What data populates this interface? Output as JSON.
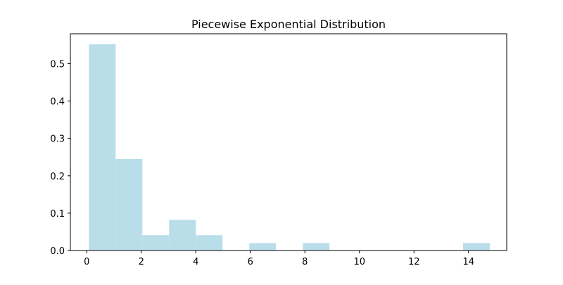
{
  "chart_data": {
    "type": "bar",
    "title": "Piecewise Exponential Distribution",
    "xlabel": "",
    "ylabel": "",
    "xlim": [
      -0.6,
      15.4
    ],
    "ylim": [
      0,
      0.58
    ],
    "xticks": [
      0,
      2,
      4,
      6,
      8,
      10,
      12,
      14
    ],
    "yticks": [
      0.0,
      0.1,
      0.2,
      0.3,
      0.4,
      0.5
    ],
    "grid": false,
    "bar_color": "#add8e6",
    "bar_opacity": 0.85,
    "bins": [
      {
        "x0": 0.08,
        "x1": 1.06,
        "value": 0.552
      },
      {
        "x0": 1.06,
        "x1": 2.04,
        "value": 0.245
      },
      {
        "x0": 2.04,
        "x1": 3.02,
        "value": 0.041
      },
      {
        "x0": 3.02,
        "x1": 4.0,
        "value": 0.082
      },
      {
        "x0": 4.0,
        "x1": 4.98,
        "value": 0.041
      },
      {
        "x0": 4.98,
        "x1": 5.96,
        "value": 0.0
      },
      {
        "x0": 5.96,
        "x1": 6.94,
        "value": 0.02
      },
      {
        "x0": 6.94,
        "x1": 7.92,
        "value": 0.0
      },
      {
        "x0": 7.92,
        "x1": 8.9,
        "value": 0.02
      },
      {
        "x0": 8.9,
        "x1": 9.88,
        "value": 0.0
      },
      {
        "x0": 9.88,
        "x1": 10.86,
        "value": 0.0
      },
      {
        "x0": 10.86,
        "x1": 11.84,
        "value": 0.0
      },
      {
        "x0": 11.84,
        "x1": 12.82,
        "value": 0.0
      },
      {
        "x0": 12.82,
        "x1": 13.8,
        "value": 0.0
      },
      {
        "x0": 13.8,
        "x1": 14.78,
        "value": 0.02
      }
    ]
  }
}
